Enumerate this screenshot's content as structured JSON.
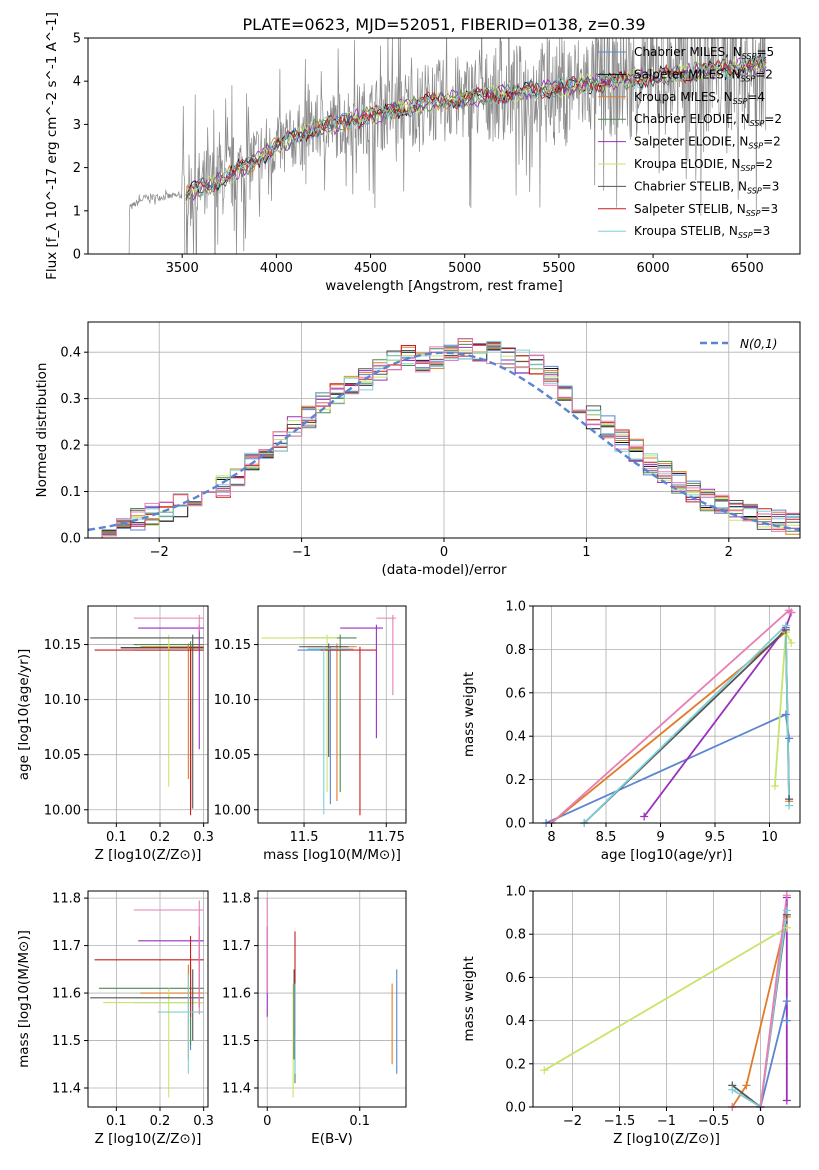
{
  "title": "PLATE=0623, MJD=52051, FIBERID=0138, z=0.39",
  "colors": {
    "Chabrier MILES": "#5b84d1",
    "Salpeter MILES": "#111111",
    "Kroupa MILES": "#e07b28",
    "Chabrier ELODIE": "#4f8a4f",
    "Salpeter ELODIE": "#9b2fbf",
    "Kroupa ELODIE": "#c7e56a",
    "Chabrier STELIB": "#555555",
    "Salpeter STELIB": "#c81e1e",
    "Kroupa STELIB": "#7ecfd6",
    "extra": "#e87fb4"
  },
  "chart_data": [
    {
      "id": "spectrum",
      "type": "line",
      "xlabel": "wavelength [Angstrom, rest frame]",
      "ylabel": "Flux [f_λ 10^-17 erg cm^-2 s^-1 A^-1]",
      "xlim": [
        3000,
        6780
      ],
      "ylim": [
        0,
        5
      ],
      "xticks": [
        3500,
        4000,
        4500,
        5000,
        5500,
        6000,
        6500
      ],
      "yticks": [
        0,
        1,
        2,
        3,
        4,
        5
      ],
      "grid": false,
      "legend_position": "top-right",
      "data_envelope": {
        "x": [
          3200,
          3300,
          3500,
          3700,
          3900,
          4000,
          4200,
          4400,
          4600,
          4800,
          5000,
          5200,
          5400,
          5600,
          5800,
          6000,
          6200,
          6400,
          6600
        ],
        "y": [
          1.0,
          1.3,
          1.35,
          1.7,
          2.2,
          2.5,
          2.9,
          3.1,
          3.3,
          3.5,
          3.6,
          3.7,
          3.8,
          3.9,
          4.0,
          4.1,
          4.2,
          4.3,
          4.4
        ]
      },
      "legend": [
        {
          "name": "Chabrier MILES",
          "sub": "SSP",
          "n": 5
        },
        {
          "name": "Salpeter MILES",
          "sub": "SSP",
          "n": 2
        },
        {
          "name": "Kroupa MILES",
          "sub": "SSP",
          "n": 4
        },
        {
          "name": "Chabrier ELODIE",
          "sub": "SSP",
          "n": 2
        },
        {
          "name": "Salpeter ELODIE",
          "sub": "SSP",
          "n": 2
        },
        {
          "name": "Kroupa ELODIE",
          "sub": "SSP",
          "n": 2
        },
        {
          "name": "Chabrier STELIB",
          "sub": "SSP",
          "n": 3
        },
        {
          "name": "Salpeter STELIB",
          "sub": "SSP",
          "n": 3
        },
        {
          "name": "Kroupa STELIB",
          "sub": "SSP",
          "n": 3
        }
      ]
    },
    {
      "id": "residuals",
      "type": "line",
      "xlabel": "(data-model)/error",
      "ylabel": "Normed distribution",
      "xlim": [
        -2.5,
        2.5
      ],
      "ylim": [
        0,
        0.465
      ],
      "xticks": [
        -2,
        -1,
        0,
        1,
        2
      ],
      "yticks": [
        0.0,
        0.1,
        0.2,
        0.3,
        0.4
      ],
      "grid": true,
      "legend_position": "top-right",
      "legend_label": "N(0,1)",
      "bin_width": 0.1,
      "histogram_center": [
        0.015,
        0.02,
        0.03,
        0.04,
        0.05,
        0.06,
        0.07,
        0.08,
        0.1,
        0.11,
        0.13,
        0.16,
        0.19,
        0.21,
        0.24,
        0.26,
        0.29,
        0.31,
        0.33,
        0.34,
        0.36,
        0.38,
        0.39,
        0.38,
        0.39,
        0.4,
        0.41,
        0.4,
        0.4,
        0.39,
        0.38,
        0.37,
        0.35,
        0.32,
        0.29,
        0.26,
        0.24,
        0.21,
        0.19,
        0.16,
        0.14,
        0.12,
        0.1,
        0.08,
        0.07,
        0.06,
        0.05,
        0.04,
        0.035,
        0.03
      ]
    },
    {
      "id": "age-vs-Z",
      "type": "scatter",
      "xlabel": "Z [log10(Z/Z⊙)]",
      "ylabel": "age [log10(age/yr)]",
      "xlim": [
        0.035,
        0.31
      ],
      "ylim": [
        9.988,
        10.185
      ],
      "xticks": [
        0.1,
        0.2,
        0.3
      ],
      "yticks": [
        10.0,
        10.05,
        10.1,
        10.15
      ],
      "grid": true,
      "errorbars": [
        {
          "color": "Chabrier MILES",
          "x": 0.27,
          "y": 10.145,
          "xerr": [
            0.13,
            0.03
          ],
          "yerr": [
            0.145,
            0.003
          ]
        },
        {
          "color": "Salpeter MILES",
          "x": 0.27,
          "y": 10.147,
          "xerr": [
            0.16,
            0.03
          ],
          "yerr": [
            0.145,
            0.003
          ]
        },
        {
          "color": "Kroupa MILES",
          "x": 0.265,
          "y": 10.148,
          "xerr": [
            0.11,
            0.035
          ],
          "yerr": [
            0.12,
            0.003
          ]
        },
        {
          "color": "Chabrier ELODIE",
          "x": 0.27,
          "y": 10.15,
          "xerr": [
            0.13,
            0.03
          ],
          "yerr": [
            0.14,
            0.003
          ]
        },
        {
          "color": "Salpeter ELODIE",
          "x": 0.29,
          "y": 10.165,
          "xerr": [
            0.14,
            0.01
          ],
          "yerr": [
            0.11,
            0.003
          ]
        },
        {
          "color": "Kroupa ELODIE",
          "x": 0.22,
          "y": 10.156,
          "xerr": [
            0.15,
            0.08
          ],
          "yerr": [
            0.135,
            0.003
          ]
        },
        {
          "color": "Chabrier STELIB",
          "x": 0.275,
          "y": 10.156,
          "xerr": [
            0.235,
            0.025
          ],
          "yerr": [
            0.155,
            0.003
          ]
        },
        {
          "color": "Salpeter STELIB",
          "x": 0.27,
          "y": 10.145,
          "xerr": [
            0.22,
            0.03
          ],
          "yerr": [
            0.15,
            0.003
          ]
        },
        {
          "color": "extra",
          "x": 0.29,
          "y": 10.174,
          "xerr": [
            0.15,
            0.01
          ],
          "yerr": [
            0.012,
            0.003
          ]
        }
      ]
    },
    {
      "id": "age-vs-mass",
      "type": "scatter",
      "xlabel": "mass [log10(M/M⊙)]",
      "ylabel": "",
      "xlim": [
        11.36,
        11.81
      ],
      "ylim": [
        9.988,
        10.185
      ],
      "xticks": [
        11.5,
        11.75
      ],
      "yticks": [
        10.0,
        10.05,
        10.1,
        10.15
      ],
      "grid": true,
      "errorbars": [
        {
          "color": "Chabrier MILES",
          "x": 11.58,
          "y": 10.145,
          "xerr": [
            0.1,
            0.05
          ],
          "yerr": [
            0.14,
            0.003
          ]
        },
        {
          "color": "Kroupa MILES",
          "x": 11.6,
          "y": 10.148,
          "xerr": [
            0.09,
            0.06
          ],
          "yerr": [
            0.14,
            0.003
          ]
        },
        {
          "color": "Chabrier ELODIE",
          "x": 11.61,
          "y": 10.156,
          "xerr": [
            0.12,
            0.05
          ],
          "yerr": [
            0.14,
            0.003
          ]
        },
        {
          "color": "Salpeter ELODIE",
          "x": 11.72,
          "y": 10.165,
          "xerr": [
            0.11,
            0.02
          ],
          "yerr": [
            0.1,
            0.003
          ]
        },
        {
          "color": "Kroupa ELODIE",
          "x": 11.57,
          "y": 10.156,
          "xerr": [
            0.2,
            0.03
          ],
          "yerr": [
            0.14,
            0.003
          ]
        },
        {
          "color": "Chabrier STELIB",
          "x": 11.575,
          "y": 10.148,
          "xerr": [
            0.09,
            0.06
          ],
          "yerr": [
            0.1,
            0.003
          ]
        },
        {
          "color": "Salpeter STELIB",
          "x": 11.67,
          "y": 10.145,
          "xerr": [
            0.12,
            0.05
          ],
          "yerr": [
            0.15,
            0.003
          ]
        },
        {
          "color": "Kroupa STELIB",
          "x": 11.56,
          "y": 10.146,
          "xerr": [
            0.05,
            0.09
          ],
          "yerr": [
            0.15,
            0.003
          ]
        },
        {
          "color": "extra",
          "x": 11.77,
          "y": 10.174,
          "xerr": [
            0.05,
            0.01
          ],
          "yerr": [
            0.07,
            0.003
          ]
        }
      ]
    },
    {
      "id": "weight-vs-age",
      "type": "line",
      "xlabel": "age [log10(age/yr)]",
      "ylabel": "mass weight",
      "xlim": [
        7.83,
        10.28
      ],
      "ylim": [
        0,
        1
      ],
      "xticks": [
        8.0,
        8.5,
        9.0,
        9.5,
        10.0
      ],
      "yticks": [
        0.0,
        0.2,
        0.4,
        0.6,
        0.8,
        1.0
      ],
      "grid": true,
      "series": [
        {
          "color": "Chabrier MILES",
          "x": [
            7.95,
            10.15,
            10.18
          ],
          "y": [
            0.0,
            0.5,
            0.39
          ]
        },
        {
          "color": "Kroupa MILES",
          "x": [
            8.0,
            10.15,
            10.18
          ],
          "y": [
            0.0,
            0.88,
            0.1
          ]
        },
        {
          "color": "Salpeter ELODIE",
          "x": [
            8.85,
            10.15,
            10.2
          ],
          "y": [
            0.03,
            0.9,
            0.97
          ]
        },
        {
          "color": "Kroupa ELODIE",
          "x": [
            10.05,
            10.15,
            10.2
          ],
          "y": [
            0.17,
            0.88,
            0.83
          ]
        },
        {
          "color": "Chabrier STELIB",
          "x": [
            8.3,
            10.15,
            10.18
          ],
          "y": [
            0.0,
            0.89,
            0.11
          ]
        },
        {
          "color": "Kroupa STELIB",
          "x": [
            8.3,
            10.15,
            10.18
          ],
          "y": [
            0.0,
            0.91,
            0.08
          ]
        },
        {
          "color": "extra",
          "x": [
            8.0,
            10.18,
            10.2
          ],
          "y": [
            0.0,
            0.98,
            0.97
          ]
        }
      ]
    },
    {
      "id": "mass-vs-Z",
      "type": "scatter",
      "xlabel": "Z [log10(Z/Z⊙)]",
      "ylabel": "mass [log10(M/M⊙)]",
      "xlim": [
        0.035,
        0.31
      ],
      "ylim": [
        11.36,
        11.815
      ],
      "xticks": [
        0.1,
        0.2,
        0.3
      ],
      "yticks": [
        11.4,
        11.5,
        11.6,
        11.7,
        11.8
      ],
      "grid": true,
      "errorbars": [
        {
          "color": "Chabrier MILES",
          "x": 0.27,
          "y": 11.58,
          "xerr": [
            0.13,
            0.03
          ],
          "yerr": [
            0.1,
            0.05
          ]
        },
        {
          "color": "Kroupa MILES",
          "x": 0.265,
          "y": 11.6,
          "xerr": [
            0.11,
            0.035
          ],
          "yerr": [
            0.14,
            0.06
          ]
        },
        {
          "color": "Chabrier ELODIE",
          "x": 0.27,
          "y": 11.61,
          "xerr": [
            0.21,
            0.03
          ],
          "yerr": [
            0.12,
            0.05
          ]
        },
        {
          "color": "Salpeter ELODIE",
          "x": 0.29,
          "y": 11.71,
          "xerr": [
            0.14,
            0.01
          ],
          "yerr": [
            0.14,
            0.03
          ]
        },
        {
          "color": "Kroupa ELODIE",
          "x": 0.22,
          "y": 11.58,
          "xerr": [
            0.15,
            0.08
          ],
          "yerr": [
            0.2,
            0.03
          ]
        },
        {
          "color": "Chabrier STELIB",
          "x": 0.275,
          "y": 11.59,
          "xerr": [
            0.235,
            0.025
          ],
          "yerr": [
            0.09,
            0.06
          ]
        },
        {
          "color": "Salpeter STELIB",
          "x": 0.27,
          "y": 11.67,
          "xerr": [
            0.22,
            0.03
          ],
          "yerr": [
            0.12,
            0.05
          ]
        },
        {
          "color": "Kroupa STELIB",
          "x": 0.265,
          "y": 11.56,
          "xerr": [
            0.07,
            0.035
          ],
          "yerr": [
            0.13,
            0.08
          ]
        },
        {
          "color": "extra",
          "x": 0.29,
          "y": 11.775,
          "xerr": [
            0.15,
            0.01
          ],
          "yerr": [
            0.22,
            0.02
          ]
        }
      ]
    },
    {
      "id": "mass-vs-EBV",
      "type": "scatter",
      "xlabel": "E(B-V)",
      "ylabel": "",
      "xlim": [
        -0.01,
        0.15
      ],
      "ylim": [
        11.36,
        11.815
      ],
      "xticks": [
        0.0,
        0.1
      ],
      "yticks": [
        11.4,
        11.5,
        11.6,
        11.7,
        11.8
      ],
      "grid": true,
      "errorbars": [
        {
          "color": "Chabrier MILES",
          "x": 0.14,
          "y": 11.55,
          "xerr": [
            0,
            0
          ],
          "yerr": [
            0.12,
            0.1
          ]
        },
        {
          "color": "Kroupa MILES",
          "x": 0.135,
          "y": 11.53,
          "xerr": [
            0,
            0
          ],
          "yerr": [
            0.08,
            0.09
          ]
        },
        {
          "color": "Chabrier ELODIE",
          "x": 0.03,
          "y": 11.52,
          "xerr": [
            0,
            0
          ],
          "yerr": [
            0.11,
            0.1
          ]
        },
        {
          "color": "Salpeter ELODIE",
          "x": 0.0,
          "y": 11.65,
          "xerr": [
            0,
            0
          ],
          "yerr": [
            0.1,
            0.09
          ]
        },
        {
          "color": "Kroupa ELODIE",
          "x": 0.028,
          "y": 11.5,
          "xerr": [
            0,
            0
          ],
          "yerr": [
            0.12,
            0.12
          ]
        },
        {
          "color": "Chabrier STELIB",
          "x": 0.029,
          "y": 11.55,
          "xerr": [
            0,
            0
          ],
          "yerr": [
            0.09,
            0.1
          ]
        },
        {
          "color": "Salpeter STELIB",
          "x": 0.03,
          "y": 11.63,
          "xerr": [
            0,
            0
          ],
          "yerr": [
            0.12,
            0.1
          ]
        },
        {
          "color": "Kroupa STELIB",
          "x": 0.03,
          "y": 11.53,
          "xerr": [
            0,
            0
          ],
          "yerr": [
            0.1,
            0.09
          ]
        },
        {
          "color": "extra",
          "x": 0.0,
          "y": 11.7,
          "xerr": [
            0,
            0
          ],
          "yerr": [
            0.1,
            0.1
          ]
        }
      ]
    },
    {
      "id": "weight-vs-Z",
      "type": "line",
      "xlabel": "Z [log10(Z/Z⊙)]",
      "ylabel": "mass weight",
      "xlim": [
        -2.42,
        0.42
      ],
      "ylim": [
        0,
        1
      ],
      "xticks": [
        -2.0,
        -1.5,
        -1.0,
        -0.5,
        0.0
      ],
      "yticks": [
        0.0,
        0.2,
        0.4,
        0.6,
        0.8,
        1.0
      ],
      "grid": true,
      "series": [
        {
          "color": "Chabrier MILES",
          "x": [
            0.0,
            0.28,
            0.28
          ],
          "y": [
            0.0,
            0.49,
            0.4
          ]
        },
        {
          "color": "Kroupa MILES",
          "x": [
            -0.3,
            -0.15,
            0.28
          ],
          "y": [
            0.0,
            0.1,
            0.88
          ]
        },
        {
          "color": "Salpeter ELODIE",
          "x": [
            0.28,
            0.28
          ],
          "y": [
            0.03,
            0.97
          ]
        },
        {
          "color": "Kroupa ELODIE",
          "x": [
            -2.3,
            0.28
          ],
          "y": [
            0.17,
            0.83
          ]
        },
        {
          "color": "Chabrier STELIB",
          "x": [
            -0.3,
            0.0,
            0.28
          ],
          "y": [
            0.1,
            0.0,
            0.89
          ]
        },
        {
          "color": "Kroupa STELIB",
          "x": [
            -0.3,
            0.0,
            0.28
          ],
          "y": [
            0.08,
            0.0,
            0.91
          ]
        },
        {
          "color": "extra",
          "x": [
            -0.3,
            0.0,
            0.28
          ],
          "y": [
            0.0,
            0.0,
            0.98
          ]
        }
      ]
    }
  ]
}
